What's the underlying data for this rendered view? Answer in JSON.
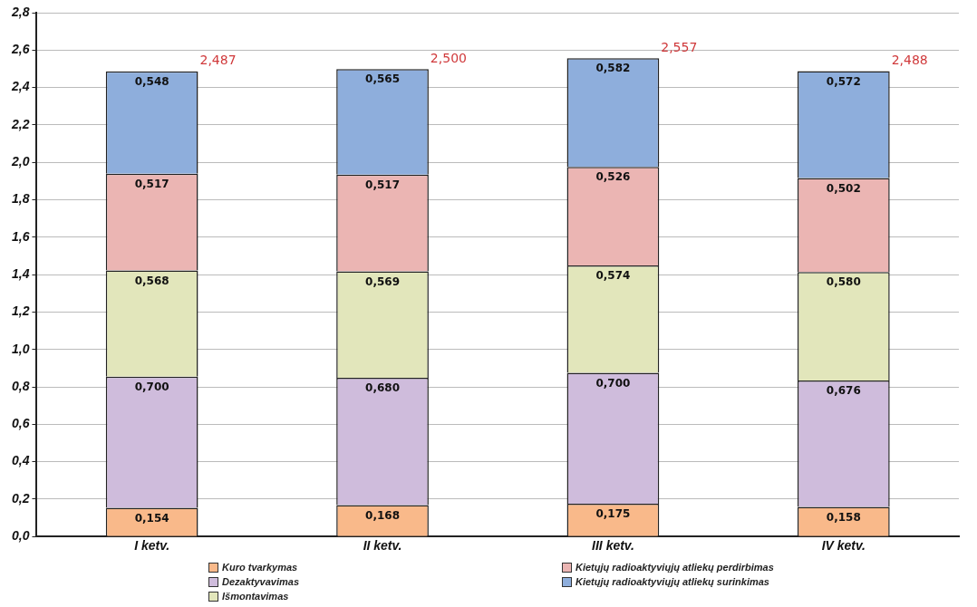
{
  "chart_data": {
    "type": "bar",
    "stacked": true,
    "categories": [
      "I ketv.",
      "II ketv.",
      "III ketv.",
      "IV ketv."
    ],
    "series": [
      {
        "name": "Kuro tvarkymas",
        "color": "#f9b98a",
        "values": [
          0.154,
          0.168,
          0.175,
          0.158
        ],
        "value_labels": [
          "0,154",
          "0,168",
          "0,175",
          "0,158"
        ]
      },
      {
        "name": "Dezaktyvavimas",
        "color": "#cfbcdc",
        "values": [
          0.7,
          0.68,
          0.7,
          0.676
        ],
        "value_labels": [
          "0,700",
          "0,680",
          "0,700",
          "0,676"
        ]
      },
      {
        "name": "Išmontavimas",
        "color": "#e2e6bb",
        "values": [
          0.568,
          0.569,
          0.574,
          0.58
        ],
        "value_labels": [
          "0,568",
          "0,569",
          "0,574",
          "0,580"
        ]
      },
      {
        "name": "Kietųjų radioaktyviųjų atliekų perdirbimas",
        "color": "#ebb5b3",
        "values": [
          0.517,
          0.517,
          0.526,
          0.502
        ],
        "value_labels": [
          "0,517",
          "0,517",
          "0,526",
          "0,502"
        ]
      },
      {
        "name": "Kietųjų radioaktyviųjų atliekų surinkimas",
        "color": "#8eaedc",
        "values": [
          0.548,
          0.565,
          0.582,
          0.572
        ],
        "value_labels": [
          "0,548",
          "0,565",
          "0,582",
          "0,572"
        ]
      }
    ],
    "totals": [
      "2,487",
      "2,500",
      "2,557",
      "2,488"
    ],
    "ylim": [
      0,
      2.8
    ],
    "yticks": [
      {
        "value": 0,
        "label": "0,0"
      },
      {
        "value": 0.2,
        "label": "0,2"
      },
      {
        "value": 0.4,
        "label": "0,4"
      },
      {
        "value": 0.6,
        "label": "0,6"
      },
      {
        "value": 0.8,
        "label": "0,8"
      },
      {
        "value": 1,
        "label": "1,0"
      },
      {
        "value": 1.2,
        "label": "1,2"
      },
      {
        "value": 1.4,
        "label": "1,4"
      },
      {
        "value": 1.6,
        "label": "1,6"
      },
      {
        "value": 1.8,
        "label": "1,8"
      },
      {
        "value": 2,
        "label": "2,0"
      },
      {
        "value": 2.2,
        "label": "2,2"
      },
      {
        "value": 2.4,
        "label": "2,4"
      },
      {
        "value": 2.6,
        "label": "2,6"
      },
      {
        "value": 2.8,
        "label": "2,8"
      }
    ],
    "grid": "y",
    "legend": "bottom"
  }
}
